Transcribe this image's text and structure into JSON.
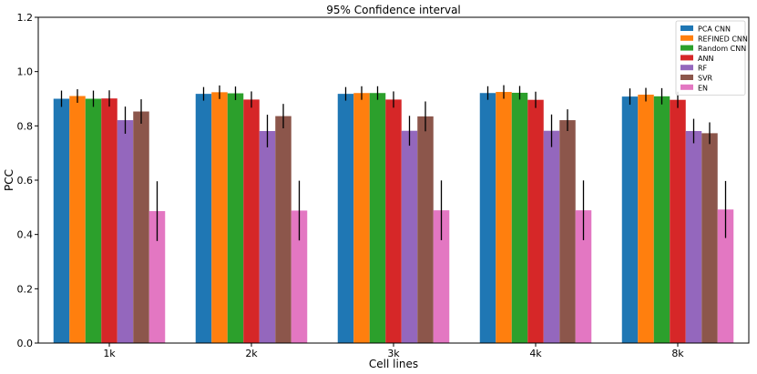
{
  "chart_data": {
    "type": "bar",
    "title": "95% Confidence interval",
    "xlabel": "Cell lines",
    "ylabel": "PCC",
    "ylim": [
      0,
      1.2
    ],
    "yticks": [
      0.0,
      0.2,
      0.4,
      0.6,
      0.8,
      1.0,
      1.2
    ],
    "ytick_labels": [
      "0.0",
      "0.2",
      "0.4",
      "0.6",
      "0.8",
      "1.0",
      "1.2"
    ],
    "grid": false,
    "legend_position": "top-right",
    "categories": [
      "1k",
      "2k",
      "3k",
      "4k",
      "8k"
    ],
    "series": [
      {
        "name": "PCA CNN",
        "color": "#1f77b4",
        "values": [
          0.9,
          0.918,
          0.918,
          0.921,
          0.908
        ],
        "errors": [
          0.03,
          0.025,
          0.025,
          0.025,
          0.03
        ]
      },
      {
        "name": "REFINED CNN",
        "color": "#ff7f0e",
        "values": [
          0.91,
          0.924,
          0.921,
          0.925,
          0.915
        ],
        "errors": [
          0.025,
          0.025,
          0.025,
          0.025,
          0.025
        ]
      },
      {
        "name": "Random CNN",
        "color": "#2ca02c",
        "values": [
          0.9,
          0.92,
          0.921,
          0.922,
          0.909
        ],
        "errors": [
          0.03,
          0.025,
          0.025,
          0.025,
          0.03
        ]
      },
      {
        "name": "ANN",
        "color": "#d62728",
        "values": [
          0.901,
          0.897,
          0.897,
          0.896,
          0.896
        ],
        "errors": [
          0.03,
          0.03,
          0.03,
          0.03,
          0.03
        ]
      },
      {
        "name": "RF",
        "color": "#9467bd",
        "values": [
          0.821,
          0.781,
          0.782,
          0.782,
          0.781
        ],
        "errors": [
          0.05,
          0.06,
          0.055,
          0.06,
          0.045
        ]
      },
      {
        "name": "SVR",
        "color": "#8c564b",
        "values": [
          0.853,
          0.836,
          0.835,
          0.821,
          0.773
        ],
        "errors": [
          0.045,
          0.045,
          0.055,
          0.04,
          0.04
        ]
      },
      {
        "name": "EN",
        "color": "#e377c2",
        "values": [
          0.486,
          0.488,
          0.489,
          0.489,
          0.492
        ],
        "errors": [
          0.11,
          0.11,
          0.11,
          0.11,
          0.105
        ]
      }
    ]
  }
}
